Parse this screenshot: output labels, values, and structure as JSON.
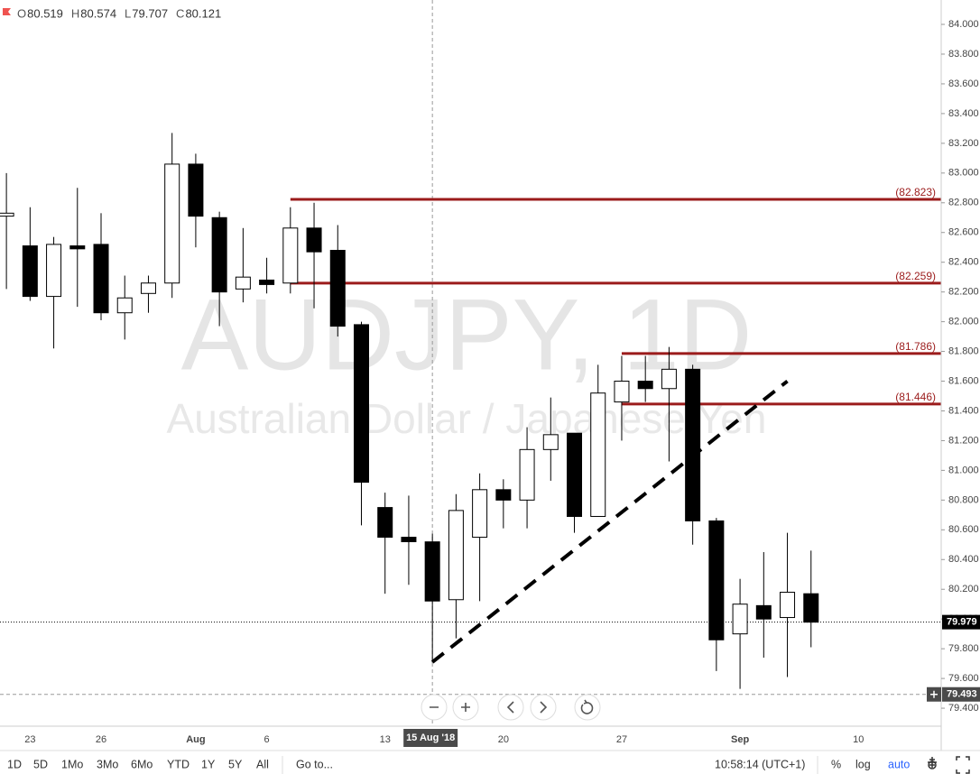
{
  "chart_data": {
    "type": "candlestick",
    "symbol": "AUDJPY, 1D",
    "description": "Australian Dollar / Japanese Yen",
    "header": [
      {
        "label": "O",
        "value": 80.519
      },
      {
        "label": "H",
        "value": 80.574
      },
      {
        "label": "L",
        "value": 79.707
      },
      {
        "label": "C",
        "value": 80.121
      }
    ],
    "categories": [
      null,
      "23",
      null,
      null,
      "26",
      null,
      null,
      null,
      "Aug",
      null,
      null,
      "6",
      null,
      null,
      null,
      null,
      "13",
      null,
      "15 Aug '18",
      null,
      null,
      "20",
      null,
      null,
      null,
      null,
      "27",
      null,
      null,
      null,
      null,
      "Sep",
      null,
      null,
      null,
      null,
      "10",
      null,
      null,
      null
    ],
    "open": [
      82.71,
      82.51,
      82.17,
      82.51,
      82.52,
      82.06,
      82.19,
      82.26,
      83.06,
      82.7,
      82.22,
      82.28,
      82.26,
      82.63,
      82.48,
      81.98,
      80.75,
      80.55,
      80.519,
      80.13,
      80.55,
      80.87,
      80.8,
      81.14,
      81.25,
      80.69,
      81.46,
      81.6,
      81.55,
      81.68,
      80.66,
      79.9,
      80.09,
      80.01,
      80.17,
      null,
      null,
      null,
      null,
      null
    ],
    "high": [
      83.0,
      82.77,
      82.57,
      82.9,
      82.73,
      82.31,
      82.31,
      83.27,
      83.13,
      82.74,
      82.63,
      82.43,
      82.77,
      82.8,
      82.65,
      82.0,
      80.85,
      80.83,
      80.574,
      80.84,
      80.98,
      80.94,
      81.29,
      81.49,
      81.25,
      81.71,
      81.77,
      81.77,
      81.83,
      81.71,
      80.68,
      80.27,
      80.45,
      80.58,
      80.46,
      null,
      null,
      null,
      null,
      null
    ],
    "low": [
      82.22,
      82.14,
      81.82,
      82.1,
      82.01,
      81.88,
      82.06,
      82.16,
      82.5,
      81.97,
      82.13,
      82.19,
      82.19,
      82.09,
      81.9,
      80.63,
      80.17,
      80.23,
      79.707,
      79.87,
      80.12,
      80.61,
      80.61,
      80.93,
      80.58,
      80.69,
      81.2,
      81.46,
      81.06,
      80.5,
      79.65,
      79.53,
      79.74,
      79.61,
      79.81,
      null,
      null,
      null,
      null,
      null
    ],
    "close": [
      82.73,
      82.17,
      82.52,
      82.49,
      82.06,
      82.16,
      82.26,
      83.06,
      82.71,
      82.2,
      82.3,
      82.25,
      82.63,
      82.47,
      81.97,
      80.92,
      80.55,
      80.52,
      80.121,
      80.73,
      80.87,
      80.8,
      81.14,
      81.24,
      80.69,
      81.52,
      81.6,
      81.55,
      81.68,
      80.66,
      79.86,
      80.1,
      80.0,
      80.18,
      79.979,
      null,
      null,
      null,
      null,
      null
    ],
    "up_color": "#ffffff",
    "down_color": "#000000",
    "ylim": [
      79.279,
      84.164
    ],
    "yticks": [
      {
        "value": 79.4,
        "label": "79.400"
      },
      {
        "value": 79.6,
        "label": "79.600"
      },
      {
        "value": 79.8,
        "label": "79.800"
      },
      {
        "value": 80.0,
        "label": "80.000"
      },
      {
        "value": 80.2,
        "label": "80.200"
      },
      {
        "value": 80.4,
        "label": "80.400"
      },
      {
        "value": 80.6,
        "label": "80.600"
      },
      {
        "value": 80.8,
        "label": "80.800"
      },
      {
        "value": 81.0,
        "label": "81.000"
      },
      {
        "value": 81.2,
        "label": "81.200"
      },
      {
        "value": 81.4,
        "label": "81.400"
      },
      {
        "value": 81.6,
        "label": "81.600"
      },
      {
        "value": 81.8,
        "label": "81.800"
      },
      {
        "value": 82.0,
        "label": "82.000"
      },
      {
        "value": 82.2,
        "label": "82.200"
      },
      {
        "value": 82.4,
        "label": "82.400"
      },
      {
        "value": 82.6,
        "label": "82.600"
      },
      {
        "value": 82.8,
        "label": "82.800"
      },
      {
        "value": 83.0,
        "label": "83.000"
      },
      {
        "value": 83.2,
        "label": "83.200"
      },
      {
        "value": 83.4,
        "label": "83.400"
      },
      {
        "value": 83.6,
        "label": "83.600"
      },
      {
        "value": 83.8,
        "label": "83.800"
      },
      {
        "value": 84.0,
        "label": "84.000"
      }
    ],
    "last_price": {
      "value": 79.979,
      "label": "79.979"
    },
    "crosshair": {
      "x": "15 Aug '18",
      "y_value": 79.493,
      "y_label": "79.493"
    },
    "levels": [
      {
        "value": 82.823,
        "label": "(82.823)",
        "start": 12
      },
      {
        "value": 82.259,
        "label": "(82.259)",
        "start": 12
      },
      {
        "value": 81.786,
        "label": "(81.786)",
        "start": 26
      },
      {
        "value": 81.446,
        "label": "(81.446)",
        "start": 26
      }
    ],
    "level_color": "#9b1b1b",
    "trendline": {
      "x": [
        18,
        33
      ],
      "y": [
        79.71,
        81.6
      ]
    }
  },
  "toolbar": {
    "ranges": [
      "1D",
      "5D",
      "1Mo",
      "3Mo",
      "6Mo",
      "YTD",
      "1Y",
      "5Y",
      "All"
    ],
    "goto": "Go to...",
    "time": "10:58:14 (UTC+1)",
    "options": [
      "%",
      "log",
      "auto"
    ]
  }
}
